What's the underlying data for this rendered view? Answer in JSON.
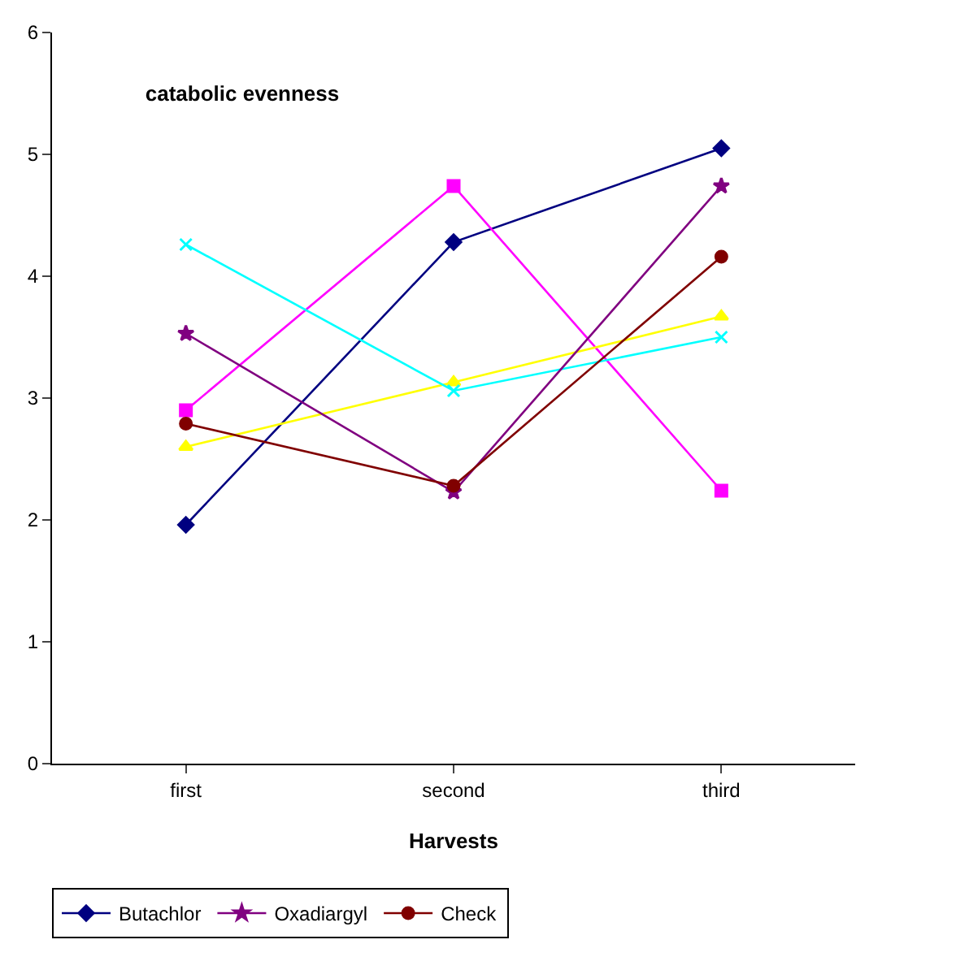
{
  "chart_data": {
    "type": "line",
    "title": "catabolic evenness",
    "xlabel": "Harvests",
    "categories": [
      "first",
      "second",
      "third"
    ],
    "ylim": [
      0,
      6
    ],
    "yticks": [
      0,
      1,
      2,
      3,
      4,
      5,
      6
    ],
    "grid": false,
    "legend": "bottom",
    "series": [
      {
        "name": "Butachlor",
        "color": "#000080",
        "marker": "diamond",
        "values": [
          1.96,
          4.28,
          5.05
        ]
      },
      {
        "color": "#ff00ff",
        "marker": "square",
        "values": [
          2.9,
          4.74,
          2.24
        ]
      },
      {
        "color": "#ffff00",
        "marker": "triangle",
        "values": [
          2.6,
          3.13,
          3.67
        ]
      },
      {
        "color": "#00ffff",
        "marker": "cross",
        "values": [
          4.26,
          3.06,
          3.5
        ]
      },
      {
        "name": "Oxadiargyl",
        "color": "#800080",
        "marker": "star",
        "values": [
          3.53,
          2.23,
          4.74
        ]
      },
      {
        "name": "Check",
        "color": "#800000",
        "marker": "circle",
        "values": [
          2.79,
          2.28,
          4.16
        ]
      }
    ]
  }
}
